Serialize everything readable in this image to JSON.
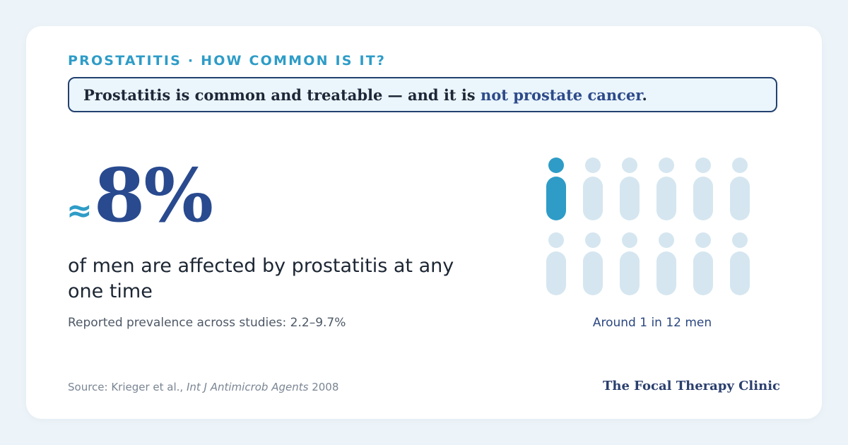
{
  "eyebrow": "PROSTATITIS · HOW COMMON IS IT?",
  "callout": {
    "text_before": "Prostatitis is common and treatable — and it is ",
    "emphasis": "not prostate cancer",
    "text_after": "."
  },
  "stat": {
    "approx_symbol": "≈",
    "value": "8%"
  },
  "headline": "of men are affected by prostatitis at any one time",
  "subtext": "Reported prevalence across studies: 2.2–9.7%",
  "pictogram": {
    "total": 12,
    "highlighted": 1,
    "label": "Around 1 in 12 men",
    "icon": "person-icon"
  },
  "source": {
    "prefix": "Source: Krieger et al., ",
    "journal": "Int J Antimicrob Agents",
    "year": " 2008"
  },
  "brand": "The Focal Therapy Clinic",
  "colors": {
    "background": "#edf4f9",
    "card": "#ffffff",
    "accent": "#2e9cc7",
    "navy": "#294a8f",
    "callout_border": "#23416e",
    "callout_fill": "#eaf5fc",
    "icon_muted": "#d5e6f0"
  }
}
